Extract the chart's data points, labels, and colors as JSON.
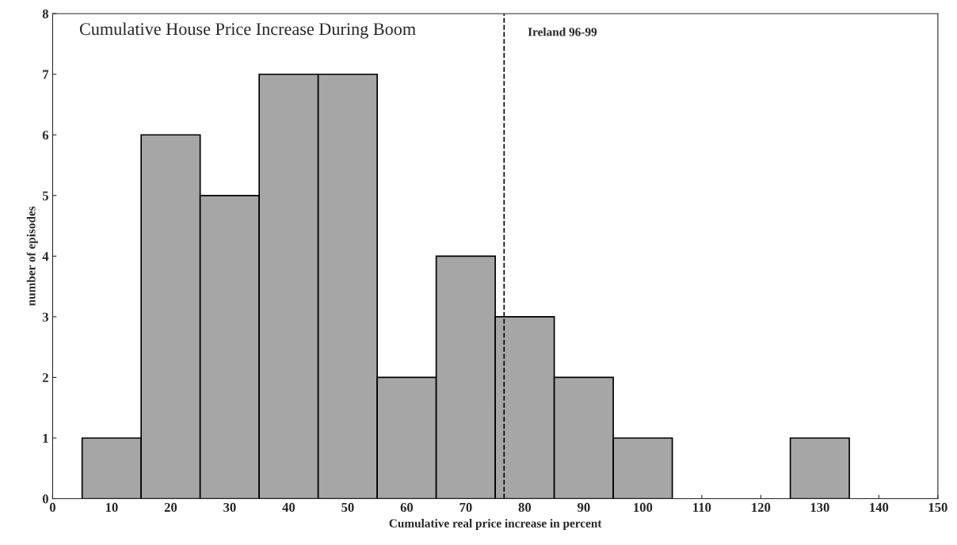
{
  "chart_data": {
    "type": "histogram",
    "title": "Cumulative House Price Increase During Boom",
    "xlabel": "Cumulative real price increase in percent",
    "ylabel": "number of episodes",
    "bins": [
      5,
      15,
      25,
      35,
      45,
      55,
      65,
      75,
      85,
      95,
      105,
      115,
      125,
      135
    ],
    "values": [
      1,
      6,
      5,
      7,
      7,
      2,
      4,
      3,
      2,
      1,
      0,
      0,
      1
    ],
    "color": "#a6a6a6",
    "xlim": [
      0,
      150
    ],
    "xticks": [
      0,
      10,
      20,
      30,
      40,
      50,
      60,
      70,
      80,
      90,
      100,
      110,
      120,
      130,
      140,
      150
    ],
    "ylim": [
      0,
      8
    ],
    "yticks": [
      0,
      1,
      2,
      3,
      4,
      5,
      6,
      7,
      8
    ],
    "ref_lines": [
      {
        "axis": "x",
        "value": 76.5,
        "label": "Ireland 96-99",
        "color": "#000000",
        "line_style": "dashed"
      }
    ]
  }
}
